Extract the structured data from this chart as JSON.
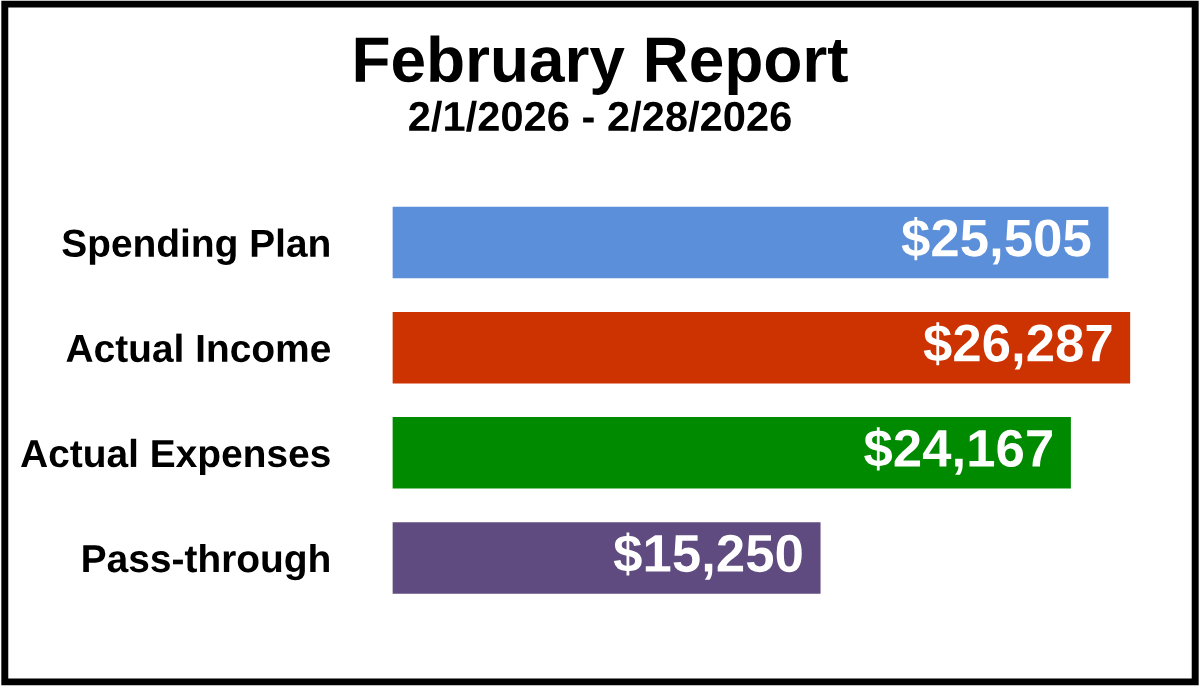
{
  "chart_data": {
    "type": "bar",
    "orientation": "horizontal",
    "title": "February Report",
    "subtitle": "2/1/2026 - 2/28/2026",
    "categories": [
      "Spending Plan",
      "Actual Income",
      "Actual Expenses",
      "Pass-through"
    ],
    "values": [
      25505,
      26287,
      24167,
      15250
    ],
    "colors": [
      "#5b8fd9",
      "#cc3300",
      "#008a00",
      "#5f4b7f"
    ],
    "value_labels": [
      "$25,505",
      "$26,287",
      "$24,167",
      "$15,250"
    ],
    "tick_labels": "y",
    "grid": false,
    "legend": false
  }
}
